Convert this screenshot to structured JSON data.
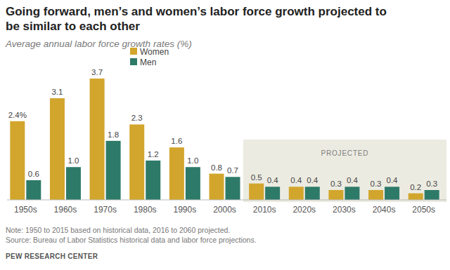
{
  "chart_data": {
    "type": "bar",
    "title": "Going forward, men’s and women’s labor force growth projected to be similar to each other",
    "subtitle": "Average annual labor force growth rates (%)",
    "categories": [
      "1950s",
      "1960s",
      "1970s",
      "1980s",
      "1990s",
      "2000s",
      "2010s",
      "2020s",
      "2030s",
      "2040s",
      "2050s"
    ],
    "series": [
      {
        "name": "Women",
        "color": "#d2a52c",
        "values": [
          2.4,
          3.1,
          3.7,
          2.3,
          1.6,
          0.8,
          0.5,
          0.4,
          0.3,
          0.3,
          0.2
        ],
        "value_labels": [
          "2.4%",
          "3.1",
          "3.7",
          "2.3",
          "1.6",
          "0.8",
          "0.5",
          "0.4",
          "0.3",
          "0.3",
          "0.2"
        ]
      },
      {
        "name": "Men",
        "color": "#2e7a69",
        "values": [
          0.6,
          1.0,
          1.8,
          1.2,
          1.0,
          0.7,
          0.4,
          0.4,
          0.4,
          0.4,
          0.3
        ],
        "value_labels": [
          "0.6",
          "1.0",
          "1.8",
          "1.2",
          "1.0",
          "0.7",
          "0.4",
          "0.4",
          "0.4",
          "0.4",
          "0.3"
        ]
      }
    ],
    "ylim": [
      0,
      4
    ],
    "data_labels": true,
    "tick_labels": "x",
    "grid": false,
    "legend": "top-left",
    "shaded_range": {
      "label": "PROJECTED",
      "categories": [
        "2010s",
        "2050s"
      ]
    },
    "note": "Note: 1950 to 2015 based on historical data, 2016 to 2060 projected.",
    "source": "Source: Bureau of Labor Statistics historical data and labor force projections.",
    "credit": "PEW RESEARCH CENTER"
  }
}
